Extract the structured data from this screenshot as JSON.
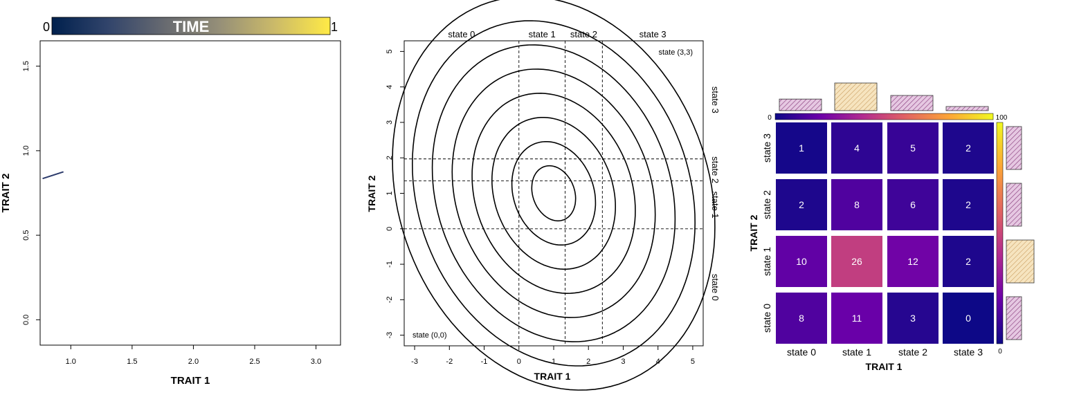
{
  "colors": {
    "time_gradient": [
      "#00204d",
      "#31446b",
      "#666970",
      "#958f78",
      "#cbba69",
      "#ffea46"
    ],
    "plasma": [
      "#0d0887",
      "#6a00a8",
      "#b12a90",
      "#e16462",
      "#fca636",
      "#f0f921"
    ],
    "trajectory": "#2b3a6b",
    "hatch_pink": "#d9b6d6",
    "hatch_orange": "#f3dca8",
    "hatch_stroke_pink": "#8a3e7e",
    "hatch_stroke_orange": "#c89a5a"
  },
  "chart_data": [
    {
      "type": "line",
      "title": "",
      "colorbar": {
        "label": "TIME",
        "min_label": "0",
        "max_label": "1"
      },
      "xlabel": "TRAIT 1",
      "ylabel": "TRAIT 2",
      "xlim": [
        0.75,
        3.2
      ],
      "ylim": [
        -0.15,
        1.65
      ],
      "xticks": [
        "1.0",
        "1.5",
        "2.0",
        "2.5",
        "3.0"
      ],
      "yticks": [
        "0.0",
        "0.5",
        "1.0",
        "1.5"
      ],
      "series": [
        {
          "x": [
            0.77,
            0.94
          ],
          "y": [
            0.835,
            0.875
          ]
        }
      ]
    },
    {
      "type": "contour",
      "xlabel": "TRAIT 1",
      "ylabel": "TRAIT 2",
      "xlim": [
        -3.3,
        5.3
      ],
      "ylim": [
        -3.3,
        5.3
      ],
      "xticks": [
        "-3",
        "-2",
        "-1",
        "0",
        "1",
        "2",
        "3",
        "4",
        "5"
      ],
      "yticks": [
        "-3",
        "-2",
        "-1",
        "0",
        "1",
        "2",
        "3",
        "4",
        "5"
      ],
      "x_thresholds": [
        0,
        1.33,
        2.4
      ],
      "y_thresholds": [
        0,
        1.35,
        1.97
      ],
      "top_state_labels": [
        "state 0",
        "state 1",
        "state 2",
        "state 3"
      ],
      "right_state_labels": [
        "state 3",
        "state 2",
        "state 1",
        "state 0"
      ],
      "corner_labels": {
        "top_right": "state (3,3)",
        "bottom_left": "state (0,0)"
      },
      "contour_center": [
        1.0,
        1.0
      ],
      "contour_levels": [
        1,
        2,
        3,
        4,
        5,
        6,
        7,
        8
      ],
      "contour_scale": [
        0.55,
        0.7,
        0.375
      ]
    },
    {
      "type": "heatmap",
      "xlabel": "TRAIT 1",
      "ylabel": "TRAIT 2",
      "columns": [
        "state 0",
        "state 1",
        "state 2",
        "state 3"
      ],
      "rows": [
        "state 3",
        "state 2",
        "state 1",
        "state 0"
      ],
      "values": [
        [
          1,
          4,
          5,
          2
        ],
        [
          2,
          8,
          6,
          2
        ],
        [
          10,
          26,
          12,
          2
        ],
        [
          8,
          11,
          3,
          0
        ]
      ],
      "colorbar": {
        "min_label": "0",
        "max_label": "100",
        "min": 0,
        "max": 100
      },
      "column_marginals": [
        0.42,
        1.0,
        0.55,
        0.15
      ],
      "row_marginals": [
        0.55,
        0.55,
        1.0,
        0.55
      ],
      "highlight_column": 1,
      "highlight_row": 2
    }
  ]
}
